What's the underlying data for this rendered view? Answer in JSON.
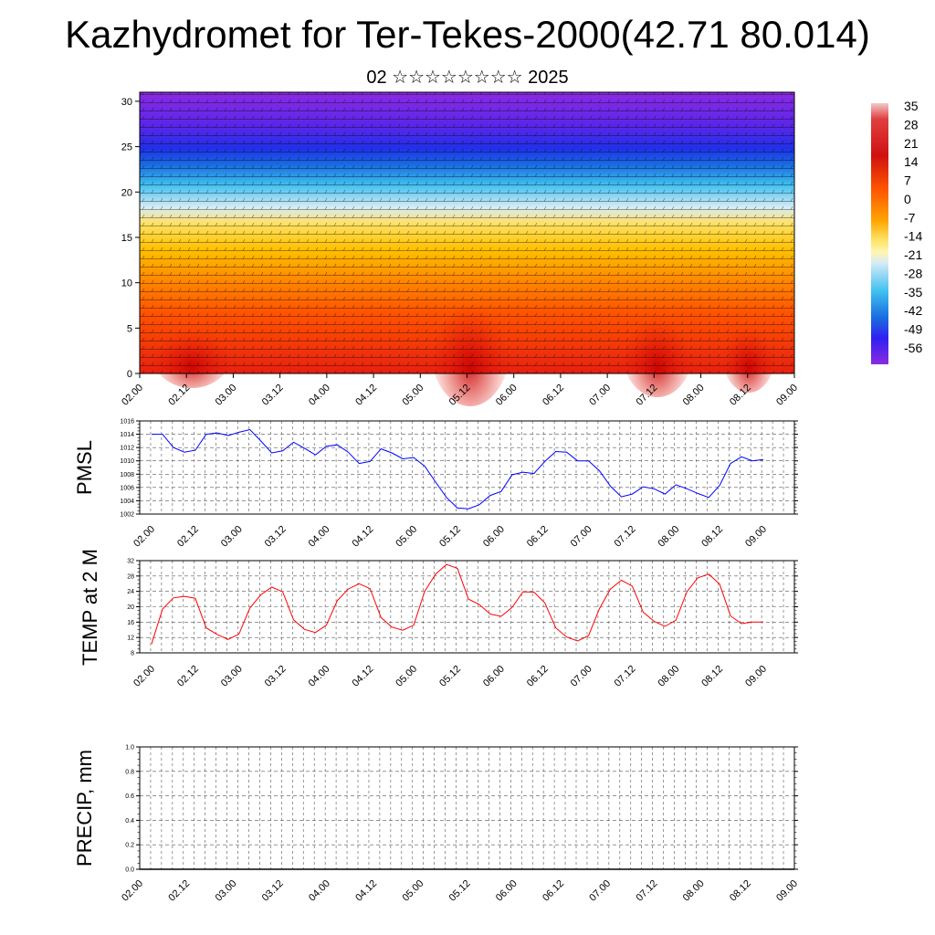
{
  "title": "Kazhydromet for Ter-Tekes-2000(42.71 80.014)",
  "subtitle": "02 ☆☆☆☆☆☆☆☆ 2025",
  "colors": {
    "pmsl": "#0000ff",
    "temp": "#ff0000",
    "precip": "#000000"
  },
  "chart_data": [
    {
      "type": "heatmap",
      "name": "cross-section",
      "x_ticks": [
        "02.00",
        "02.12",
        "03.00",
        "03.12",
        "04.00",
        "04.12",
        "05.00",
        "05.12",
        "06.00",
        "06.12",
        "07.00",
        "07.12",
        "08.00",
        "08.12",
        "09.00"
      ],
      "y_ticks": [
        "0",
        "5",
        "10",
        "15",
        "20",
        "25",
        "30"
      ],
      "ylim": [
        0,
        31
      ],
      "colorbar_ticks": [
        "35",
        "28",
        "21",
        "14",
        "7",
        "0",
        "-7",
        "-14",
        "-21",
        "-28",
        "-35",
        "-42",
        "-49",
        "-56"
      ]
    },
    {
      "type": "line",
      "name": "pmsl",
      "ylabel": "PMSL",
      "y_ticks": [
        "1016",
        "1014",
        "1012",
        "1010",
        "1008",
        "1006",
        "1004",
        "1002"
      ],
      "ylim": [
        1002,
        1016
      ],
      "x_ticks": [
        "02.00",
        "02.12",
        "03.00",
        "03.12",
        "04.00",
        "04.12",
        "05.00",
        "05.12",
        "06.00",
        "06.12",
        "07.00",
        "07.12",
        "08.00",
        "08.12",
        "09.00"
      ],
      "values": [
        1014,
        1014,
        1012,
        1011.3,
        1011.6,
        1014,
        1014.2,
        1013.8,
        1014.3,
        1014.7,
        1013,
        1011.2,
        1011.5,
        1012.8,
        1011.9,
        1010.9,
        1012.2,
        1012.4,
        1011.3,
        1009.6,
        1009.9,
        1011.8,
        1011.2,
        1010.3,
        1010.5,
        1009.2,
        1006.8,
        1004.5,
        1002.9,
        1002.8,
        1003.4,
        1004.8,
        1005.4,
        1007.9,
        1008.3,
        1008.1,
        1009.9,
        1011.4,
        1011.3,
        1010,
        1010,
        1008.5,
        1006.2,
        1004.6,
        1005,
        1006.1,
        1005.8,
        1005,
        1006.4,
        1005.8,
        1005.1,
        1004.5,
        1006.3,
        1009.6,
        1010.6,
        1010,
        1010.2
      ],
      "grid": true
    },
    {
      "type": "line",
      "name": "temp",
      "ylabel": "TEMP at 2 M",
      "y_ticks": [
        "32",
        "28",
        "24",
        "20",
        "16",
        "12",
        "8"
      ],
      "ylim": [
        8,
        32
      ],
      "x_ticks": [
        "02.00",
        "02.12",
        "03.00",
        "03.12",
        "04.00",
        "04.12",
        "05.00",
        "05.12",
        "06.00",
        "06.12",
        "07.00",
        "07.12",
        "08.00",
        "08.12",
        "09.00"
      ],
      "values": [
        10.3,
        19.4,
        22.3,
        22.7,
        22.2,
        14.5,
        12.8,
        11.5,
        12.9,
        19.7,
        23.1,
        25.1,
        23.9,
        16.6,
        14.1,
        13.3,
        15.2,
        21.6,
        24.6,
        26,
        24.7,
        17.2,
        14.7,
        13.9,
        15.2,
        24,
        28.5,
        31,
        30,
        22,
        20.6,
        18.1,
        17.5,
        19.8,
        23.9,
        23.8,
        21,
        14.5,
        12.1,
        11.1,
        12.5,
        19.5,
        24.6,
        26.9,
        25.4,
        18.6,
        16.2,
        14.9,
        16.5,
        23.9,
        27.5,
        28.5,
        25.9,
        17.6,
        15.6,
        16,
        16
      ],
      "grid": true
    },
    {
      "type": "line",
      "name": "precip",
      "ylabel": "PRECIP, mm",
      "y_ticks": [
        "1.0",
        "0.8",
        "0.6",
        "0.4",
        "0.2",
        "0.0"
      ],
      "ylim": [
        0,
        1
      ],
      "x_ticks": [
        "02.00",
        "02.12",
        "03.00",
        "03.12",
        "04.00",
        "04.12",
        "05.00",
        "05.12",
        "06.00",
        "06.12",
        "07.00",
        "07.12",
        "08.00",
        "08.12",
        "09.00"
      ],
      "values": [],
      "grid": true
    }
  ]
}
